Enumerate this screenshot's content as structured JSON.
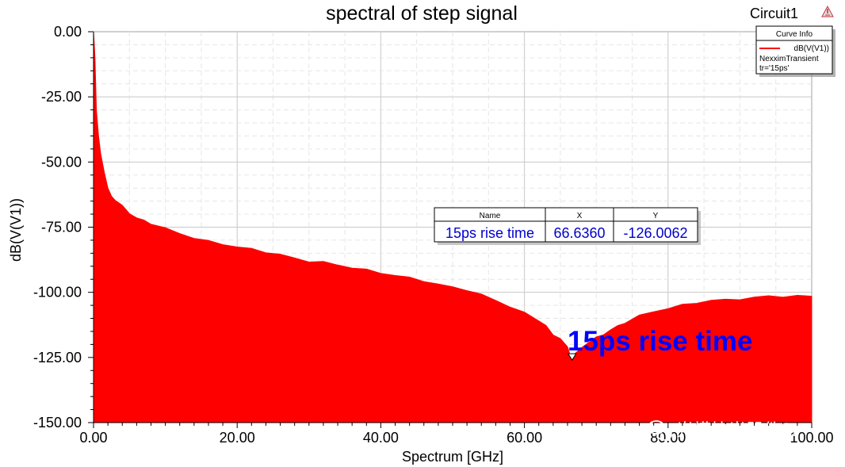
{
  "chart_data": {
    "type": "area",
    "title": "spectral of step signal",
    "circuit": "Circuit1",
    "xlabel": "Spectrum [GHz]",
    "ylabel": "dB(V(V1))",
    "xlim": [
      0,
      100
    ],
    "ylim": [
      -150,
      0
    ],
    "xticks": [
      "0.00",
      "20.00",
      "40.00",
      "60.00",
      "80.00",
      "100.00"
    ],
    "yticks": [
      "0.00",
      "-25.00",
      "-50.00",
      "-75.00",
      "-100.00",
      "-125.00",
      "-150.00"
    ],
    "grid": true,
    "series": [
      {
        "name": "dB(V(V1))",
        "color": "#ff0000",
        "x": [
          0,
          0.2,
          0.4,
          0.7,
          1,
          1.5,
          2,
          2.5,
          3,
          4,
          5,
          6,
          7,
          8,
          10,
          12,
          14,
          16,
          18,
          20,
          22,
          24,
          26,
          28,
          30,
          32,
          34,
          36,
          38,
          40,
          42,
          44,
          46,
          48,
          50,
          52,
          54,
          56,
          58,
          60,
          61,
          62,
          63,
          64,
          65,
          66,
          66.6,
          67,
          68,
          69,
          70,
          71,
          72,
          73,
          74,
          76,
          78,
          80,
          82,
          84,
          86,
          88,
          90,
          92,
          94,
          96,
          98,
          100
        ],
        "y": [
          0,
          -10,
          -30,
          -40,
          -47,
          -54,
          -60,
          -63,
          -64.5,
          -67,
          -69.5,
          -71.5,
          -72.5,
          -73.5,
          -75.5,
          -77.5,
          -79,
          -80.5,
          -81.5,
          -82.5,
          -83.5,
          -84.5,
          -85.5,
          -87,
          -88,
          -88.5,
          -89.5,
          -90.5,
          -91.5,
          -92.5,
          -93.5,
          -94.5,
          -95.5,
          -97,
          -98,
          -99,
          -101,
          -103,
          -105.5,
          -108,
          -109,
          -111,
          -113,
          -116,
          -118,
          -121,
          -126.0,
          -124,
          -121,
          -119,
          -117.5,
          -116,
          -114.5,
          -113,
          -111.5,
          -109,
          -107.5,
          -106,
          -105,
          -104,
          -103,
          -103,
          -102.5,
          -102,
          -101.5,
          -101.5,
          -101.5,
          -101.5
        ]
      }
    ],
    "legend": {
      "title": "Curve Info",
      "entry": "dB(V(V1))",
      "lines": [
        "NexximTransient",
        "tr='15ps'"
      ],
      "position": "top-right"
    },
    "marker": {
      "label": "15ps rise time",
      "x": 66.636,
      "y": -126.0062
    },
    "marker_table": {
      "headers": [
        "Name",
        "X",
        "Y"
      ],
      "row": [
        "15ps rise time",
        "66.6360",
        "-126.0062"
      ]
    }
  },
  "watermark": "光模块光器件SI"
}
